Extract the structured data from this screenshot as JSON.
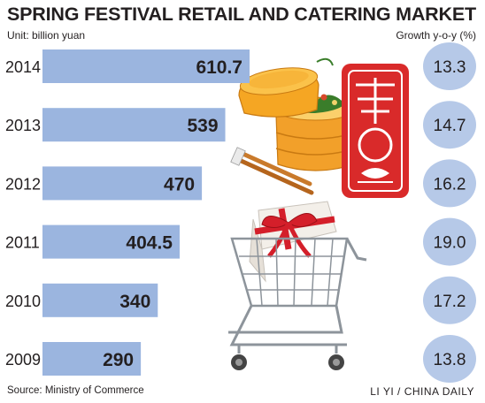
{
  "chart_data": {
    "type": "bar",
    "title": "SPRING FESTIVAL RETAIL AND CATERING MARKET",
    "unit": "Unit: billion yuan",
    "growth_label": "Growth y-o-y (%)",
    "categories": [
      "2014",
      "2013",
      "2012",
      "2011",
      "2010",
      "2009"
    ],
    "value_labels": [
      "610.7",
      "539",
      "470",
      "404.5",
      "340",
      "290"
    ],
    "values": [
      610.7,
      539,
      470,
      404.5,
      340,
      290
    ],
    "growth_labels": [
      "13.3",
      "14.7",
      "16.2",
      "19.0",
      "17.2",
      "13.8"
    ],
    "growth": [
      13.3,
      14.7,
      16.2,
      19.0,
      17.2,
      13.8
    ],
    "orientation": "horizontal",
    "bar_color": "#9bb5df",
    "circle_color": "#b6c9e8",
    "grid": false
  },
  "source": "Source: Ministry of Commerce",
  "credit": "LI YI / CHINA DAILY",
  "decor": {
    "steamer_colors": [
      "#f5a623",
      "#e8891a",
      "#fbd06b"
    ],
    "papercut_color": "#d92a2a",
    "gift_ribbon_color": "#d41f2a",
    "cart_color": "#8d949b"
  }
}
